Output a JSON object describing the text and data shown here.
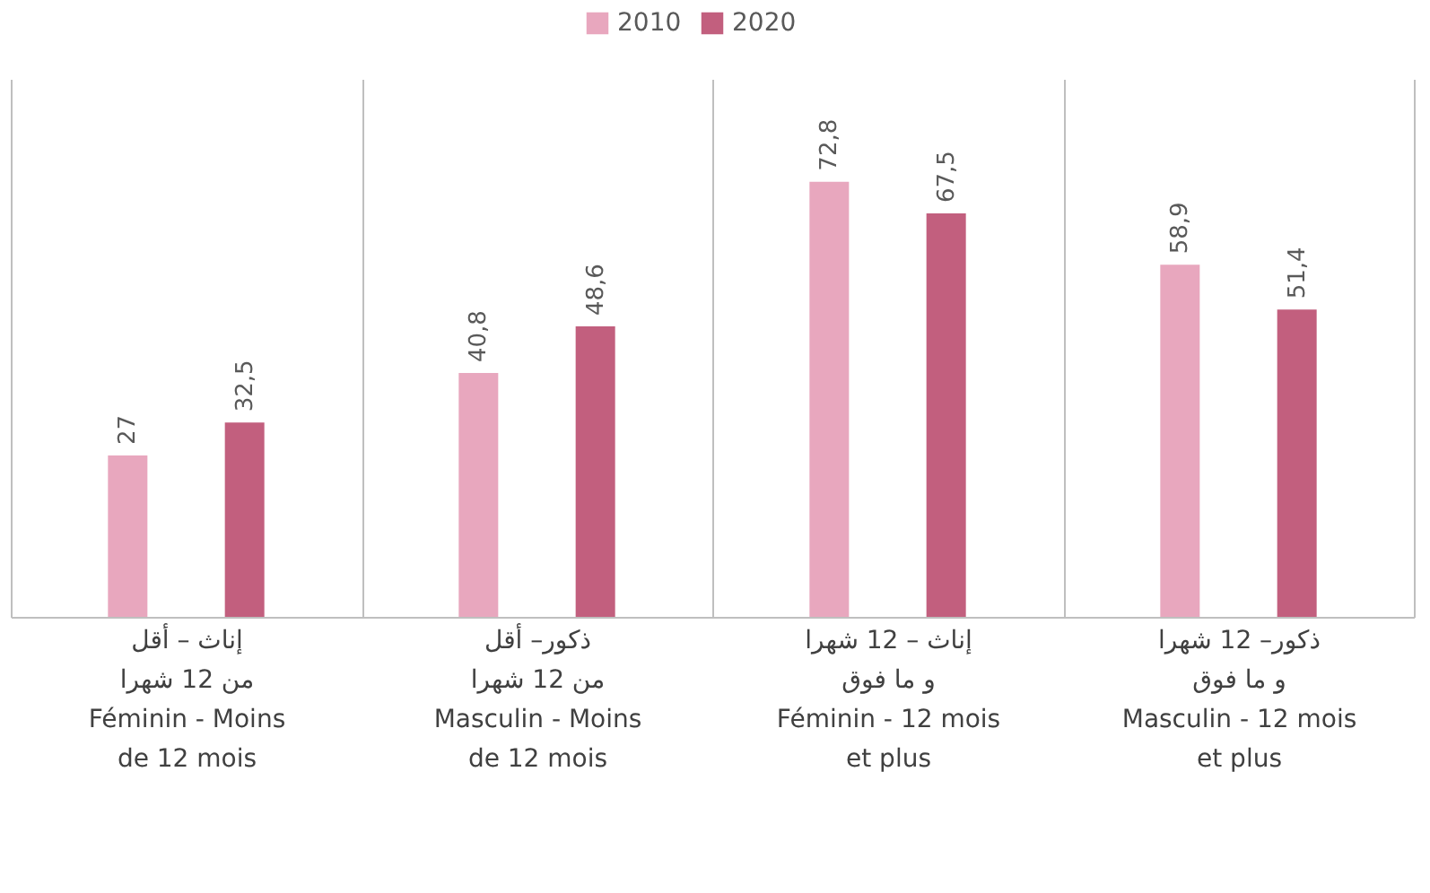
{
  "chart_data": {
    "type": "bar",
    "categories": [
      "إناث – أقل\nمن 12 شهرا\nFéminin - Moins\nde 12 mois",
      "ذكور– أقل\nمن 12 شهرا\nMasculin - Moins\nde 12 mois",
      "إناث – 12 شهرا\nو ما فوق\nFéminin - 12 mois\net plus",
      "ذكور–  12 شهرا\nو ما فوق\nMasculin - 12 mois\net plus"
    ],
    "series": [
      {
        "name": "2010",
        "color": "#e8a7be",
        "values": [
          27,
          40.8,
          72.8,
          58.9
        ],
        "value_labels": [
          "27",
          "40,8",
          "72,8",
          "58,9"
        ]
      },
      {
        "name": "2020",
        "color": "#c25f7e",
        "values": [
          32.5,
          48.6,
          67.5,
          51.4
        ],
        "value_labels": [
          "32,5",
          "48,6",
          "67,5",
          "51,4"
        ]
      }
    ],
    "ylim": [
      0,
      90
    ],
    "grid": "x",
    "legend": "top",
    "tick_labels": "x"
  }
}
